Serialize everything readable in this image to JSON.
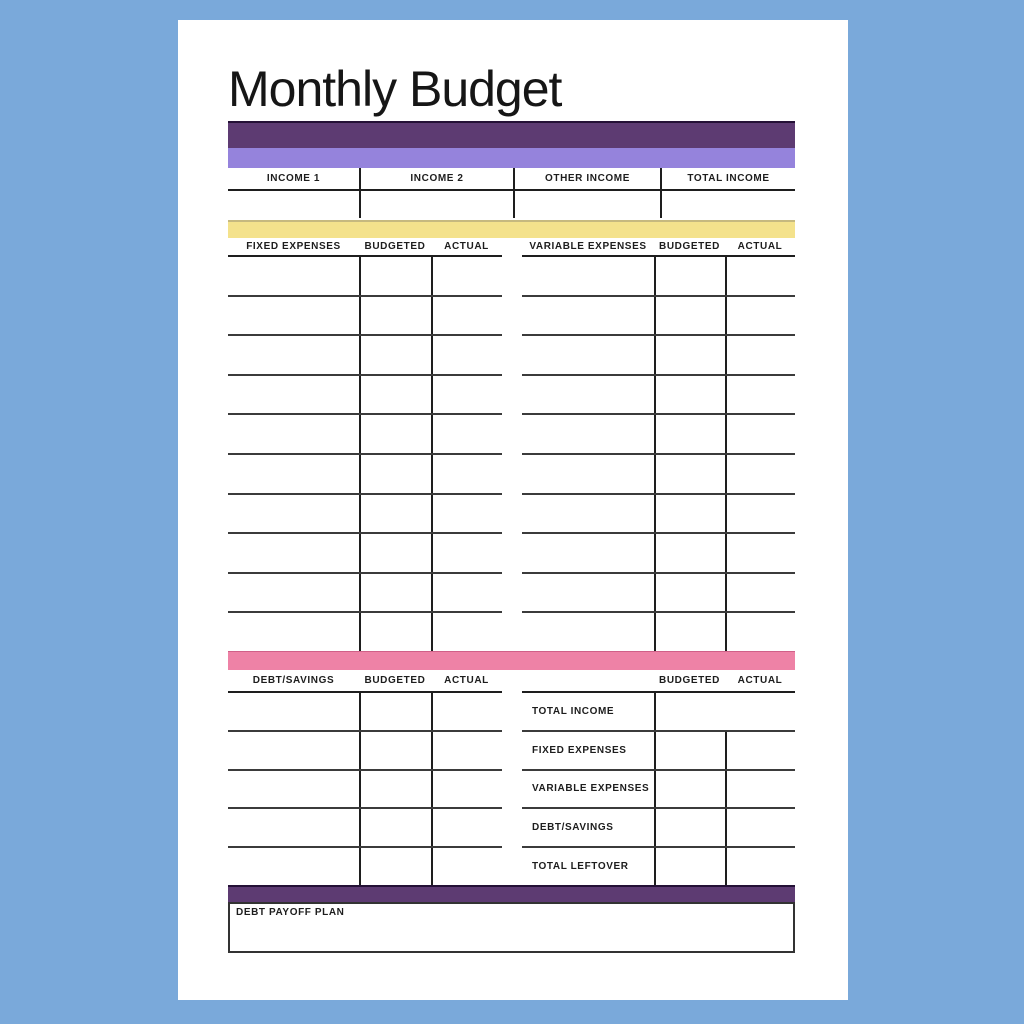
{
  "title": "Monthly Budget",
  "colors": {
    "background_blue": "#7aa9da",
    "dark_purple": "#5d3b72",
    "light_purple": "#9583dc",
    "yellow": "#f4e28c",
    "pink": "#ee82a6",
    "grid_line": "#3b3b3b",
    "text": "#1d1d1d"
  },
  "income_table": {
    "headers": [
      "INCOME 1",
      "INCOME 2",
      "OTHER INCOME",
      "TOTAL INCOME"
    ],
    "row_values": [
      "",
      "",
      "",
      ""
    ]
  },
  "fixed_expenses_table": {
    "header": "FIXED EXPENSES",
    "columns": [
      "BUDGETED",
      "ACTUAL"
    ],
    "row_count": 10
  },
  "variable_expenses_table": {
    "header": "VARIABLE EXPENSES",
    "columns": [
      "BUDGETED",
      "ACTUAL"
    ],
    "row_count": 10
  },
  "debt_savings_table": {
    "header": "DEBT/SAVINGS",
    "columns": [
      "BUDGETED",
      "ACTUAL"
    ],
    "row_count": 5
  },
  "summary_table": {
    "columns": [
      "BUDGETED",
      "ACTUAL"
    ],
    "rows": [
      "TOTAL INCOME",
      "FIXED EXPENSES",
      "VARIABLE EXPENSES",
      "DEBT/SAVINGS",
      "TOTAL LEFTOVER"
    ]
  },
  "debt_payoff": {
    "label": "DEBT PAYOFF PLAN"
  }
}
